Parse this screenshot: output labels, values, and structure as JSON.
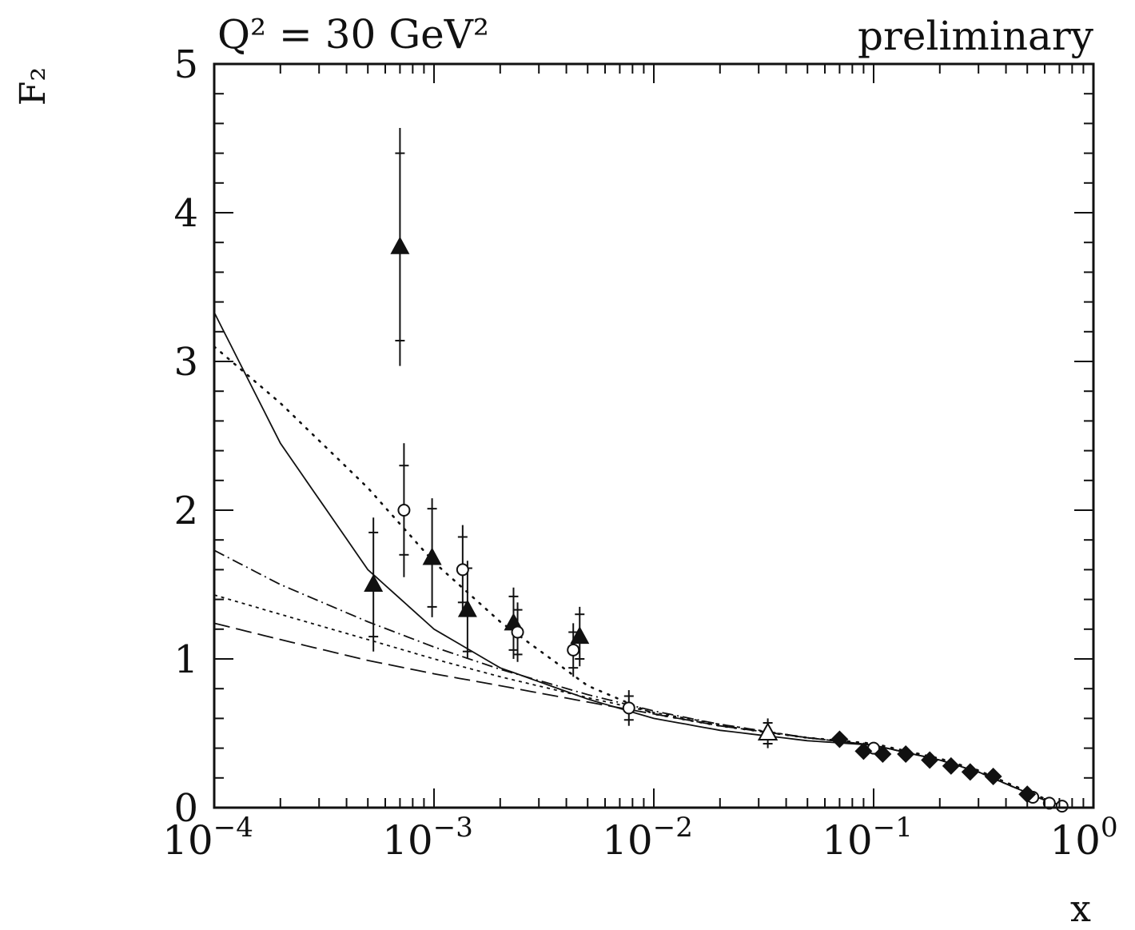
{
  "chart_data": {
    "type": "scatter",
    "title": "Q² = 30 GeV²",
    "subtitle": "preliminary",
    "xlabel": "x",
    "ylabel": "F₂",
    "x_scale": "log",
    "xlim": [
      0.0001,
      1
    ],
    "ylim": [
      0,
      5
    ],
    "x_tick_labels": [
      {
        "x": 0.0001,
        "base": "10",
        "exp": "−4"
      },
      {
        "x": 0.001,
        "base": "10",
        "exp": "−3"
      },
      {
        "x": 0.01,
        "base": "10",
        "exp": "−2"
      },
      {
        "x": 0.1,
        "base": "10",
        "exp": "−1"
      },
      {
        "x": 1,
        "base": "10",
        "exp": "0"
      }
    ],
    "y_tick_labels": [
      {
        "y": 0,
        "label": "0"
      },
      {
        "y": 1,
        "label": "1"
      },
      {
        "y": 2,
        "label": "2"
      },
      {
        "y": 3,
        "label": "3"
      },
      {
        "y": 4,
        "label": "4"
      },
      {
        "y": 5,
        "label": "5"
      }
    ],
    "grid": false,
    "series": [
      {
        "marker": "filled-triangle",
        "points": [
          {
            "x": 0.00053,
            "y": 1.5,
            "err": 0.45,
            "err_stat": 0.35
          },
          {
            "x": 0.0007,
            "y": 3.77,
            "err": 0.8,
            "err_stat": 0.63
          },
          {
            "x": 0.00098,
            "y": 1.68,
            "err": 0.4,
            "err_stat": 0.33
          },
          {
            "x": 0.00142,
            "y": 1.33,
            "err": 0.33,
            "err_stat": 0.28
          },
          {
            "x": 0.0023,
            "y": 1.24,
            "err": 0.24,
            "err_stat": 0.18
          },
          {
            "x": 0.0046,
            "y": 1.15,
            "err": 0.2,
            "err_stat": 0.15
          }
        ]
      },
      {
        "marker": "open-circle",
        "points": [
          {
            "x": 0.00073,
            "y": 2.0,
            "err": 0.45,
            "err_stat": 0.3
          },
          {
            "x": 0.00135,
            "y": 1.6,
            "err": 0.3,
            "err_stat": 0.22
          },
          {
            "x": 0.0024,
            "y": 1.18,
            "err": 0.2,
            "err_stat": 0.15
          },
          {
            "x": 0.0043,
            "y": 1.06,
            "err": 0.18,
            "err_stat": 0.12
          },
          {
            "x": 0.0077,
            "y": 0.67,
            "err": 0.12,
            "err_stat": 0.08
          },
          {
            "x": 0.1,
            "y": 0.4,
            "err": 0.02,
            "err_stat": 0.01
          },
          {
            "x": 0.53,
            "y": 0.07,
            "err": 0.01,
            "err_stat": 0.005
          },
          {
            "x": 0.63,
            "y": 0.03,
            "err": 0.01,
            "err_stat": 0.005
          },
          {
            "x": 0.72,
            "y": 0.01,
            "err": 0.005,
            "err_stat": 0.003
          }
        ]
      },
      {
        "marker": "open-triangle",
        "points": [
          {
            "x": 0.033,
            "y": 0.5,
            "err": 0.1,
            "err_stat": 0.07
          }
        ]
      },
      {
        "marker": "filled-diamond",
        "points": [
          {
            "x": 0.07,
            "y": 0.46,
            "err": 0.02,
            "err_stat": 0.01
          },
          {
            "x": 0.09,
            "y": 0.38,
            "err": 0.02,
            "err_stat": 0.01
          },
          {
            "x": 0.11,
            "y": 0.36,
            "err": 0.02,
            "err_stat": 0.01
          },
          {
            "x": 0.14,
            "y": 0.36,
            "err": 0.02,
            "err_stat": 0.01
          },
          {
            "x": 0.18,
            "y": 0.32,
            "err": 0.02,
            "err_stat": 0.01
          },
          {
            "x": 0.225,
            "y": 0.28,
            "err": 0.02,
            "err_stat": 0.01
          },
          {
            "x": 0.275,
            "y": 0.24,
            "err": 0.02,
            "err_stat": 0.01
          },
          {
            "x": 0.35,
            "y": 0.21,
            "err": 0.02,
            "err_stat": 0.01
          },
          {
            "x": 0.5,
            "y": 0.09,
            "err": 0.01,
            "err_stat": 0.005
          }
        ]
      }
    ],
    "curves": [
      {
        "style": "solid",
        "points": [
          [
            0.0001,
            3.33
          ],
          [
            0.0002,
            2.45
          ],
          [
            0.0005,
            1.6
          ],
          [
            0.001,
            1.2
          ],
          [
            0.002,
            0.94
          ],
          [
            0.005,
            0.73
          ],
          [
            0.01,
            0.6
          ],
          [
            0.02,
            0.52
          ],
          [
            0.05,
            0.45
          ],
          [
            0.1,
            0.42
          ],
          [
            0.2,
            0.32
          ],
          [
            0.3,
            0.24
          ],
          [
            0.4,
            0.16
          ],
          [
            0.5,
            0.1
          ],
          [
            0.6,
            0.05
          ],
          [
            0.7,
            0.02
          ],
          [
            0.75,
            0.0
          ]
        ]
      },
      {
        "style": "dotted",
        "points": [
          [
            0.0001,
            3.1
          ],
          [
            0.0002,
            2.72
          ],
          [
            0.0005,
            2.15
          ],
          [
            0.001,
            1.65
          ],
          [
            0.002,
            1.25
          ],
          [
            0.005,
            0.82
          ],
          [
            0.01,
            0.63
          ],
          [
            0.02,
            0.55
          ],
          [
            0.05,
            0.47
          ],
          [
            0.1,
            0.43
          ],
          [
            0.2,
            0.33
          ],
          [
            0.3,
            0.25
          ],
          [
            0.4,
            0.17
          ],
          [
            0.5,
            0.11
          ],
          [
            0.6,
            0.06
          ],
          [
            0.7,
            0.02
          ],
          [
            0.75,
            0.0
          ]
        ]
      },
      {
        "style": "dash-dot",
        "points": [
          [
            0.0001,
            1.73
          ],
          [
            0.0002,
            1.5
          ],
          [
            0.0005,
            1.25
          ],
          [
            0.001,
            1.08
          ],
          [
            0.002,
            0.93
          ],
          [
            0.005,
            0.76
          ],
          [
            0.01,
            0.65
          ],
          [
            0.02,
            0.56
          ],
          [
            0.05,
            0.47
          ],
          [
            0.1,
            0.42
          ],
          [
            0.2,
            0.32
          ],
          [
            0.3,
            0.24
          ],
          [
            0.4,
            0.16
          ],
          [
            0.5,
            0.1
          ],
          [
            0.6,
            0.05
          ],
          [
            0.7,
            0.02
          ],
          [
            0.75,
            0.0
          ]
        ]
      },
      {
        "style": "short-dash",
        "points": [
          [
            0.0001,
            1.43
          ],
          [
            0.0002,
            1.3
          ],
          [
            0.0005,
            1.13
          ],
          [
            0.001,
            1.0
          ],
          [
            0.002,
            0.88
          ],
          [
            0.005,
            0.74
          ],
          [
            0.01,
            0.64
          ],
          [
            0.02,
            0.56
          ],
          [
            0.05,
            0.47
          ],
          [
            0.1,
            0.42
          ],
          [
            0.2,
            0.32
          ],
          [
            0.3,
            0.24
          ],
          [
            0.4,
            0.16
          ],
          [
            0.5,
            0.1
          ],
          [
            0.6,
            0.05
          ],
          [
            0.7,
            0.02
          ],
          [
            0.75,
            0.0
          ]
        ]
      },
      {
        "style": "long-dash",
        "points": [
          [
            0.0001,
            1.24
          ],
          [
            0.0002,
            1.13
          ],
          [
            0.0005,
            0.99
          ],
          [
            0.001,
            0.9
          ],
          [
            0.002,
            0.82
          ],
          [
            0.005,
            0.71
          ],
          [
            0.01,
            0.63
          ],
          [
            0.02,
            0.55
          ],
          [
            0.05,
            0.47
          ],
          [
            0.1,
            0.42
          ],
          [
            0.2,
            0.32
          ],
          [
            0.3,
            0.24
          ],
          [
            0.4,
            0.16
          ],
          [
            0.5,
            0.1
          ],
          [
            0.6,
            0.05
          ],
          [
            0.7,
            0.02
          ],
          [
            0.75,
            0.0
          ]
        ]
      }
    ]
  }
}
